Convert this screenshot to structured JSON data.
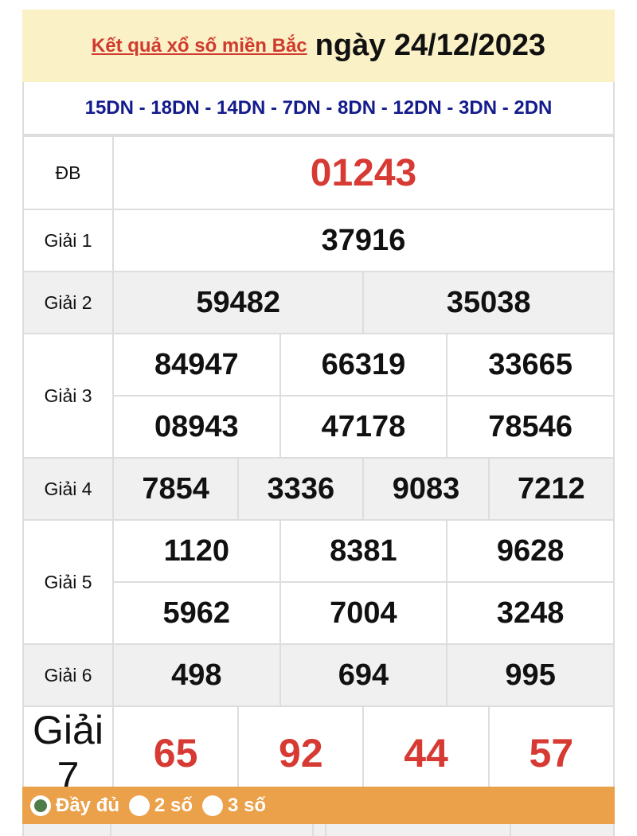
{
  "header": {
    "title_link": "Kết quả xổ số miền Bắc",
    "date": "ngày 24/12/2023"
  },
  "codes": "15DN - 18DN - 14DN - 7DN - 8DN - 12DN - 3DN - 2DN",
  "prizes": {
    "db": {
      "label": "ĐB",
      "numbers": [
        "01243"
      ]
    },
    "g1": {
      "label": "Giải 1",
      "numbers": [
        "37916"
      ]
    },
    "g2": {
      "label": "Giải 2",
      "numbers": [
        "59482",
        "35038"
      ]
    },
    "g3": {
      "label": "Giải 3",
      "numbers": [
        "84947",
        "66319",
        "33665",
        "08943",
        "47178",
        "78546"
      ]
    },
    "g4": {
      "label": "Giải 4",
      "numbers": [
        "7854",
        "3336",
        "9083",
        "7212"
      ]
    },
    "g5": {
      "label": "Giải 5",
      "numbers": [
        "1120",
        "8381",
        "9628",
        "5962",
        "7004",
        "3248"
      ]
    },
    "g6": {
      "label": "Giải 6",
      "numbers": [
        "498",
        "694",
        "995"
      ]
    },
    "g7": {
      "label": "Giải 7",
      "numbers": [
        "65",
        "92",
        "44",
        "57"
      ]
    }
  },
  "options": {
    "selected": "full",
    "full": "Đầy đủ",
    "two": "2 số",
    "three": "3 số"
  },
  "colors": {
    "header_bg": "#fbf1c6",
    "link_red": "#d03a2f",
    "codes_blue": "#141c8c",
    "bar_orange": "#eba04a",
    "radio_green": "#4f7c4b"
  }
}
